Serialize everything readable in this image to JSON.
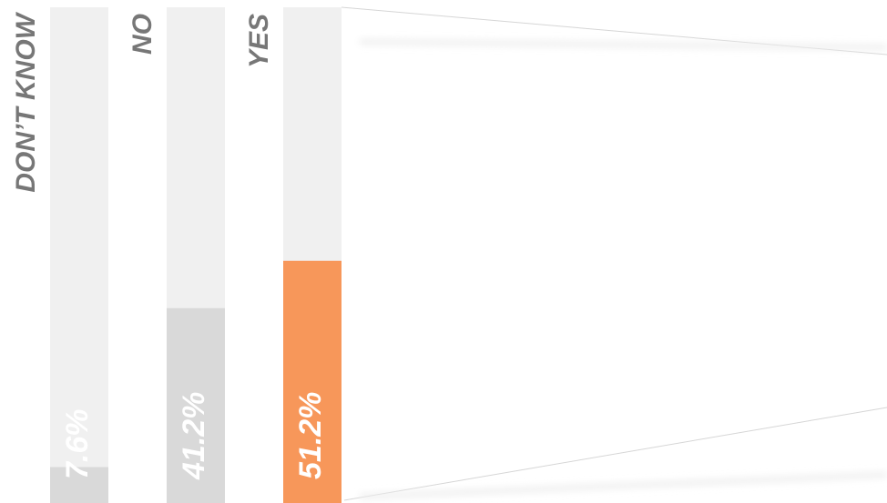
{
  "chart_data": {
    "type": "bar",
    "categories": [
      "DON’T KNOW",
      "NO",
      "YES"
    ],
    "values": [
      7.6,
      41.2,
      51.2
    ],
    "value_labels": [
      "7.6%",
      "41.2%",
      "51.2%"
    ],
    "colors": [
      "#d9d9d9",
      "#d9d9d9",
      "#f7975a"
    ],
    "ylim": [
      0,
      100
    ]
  }
}
